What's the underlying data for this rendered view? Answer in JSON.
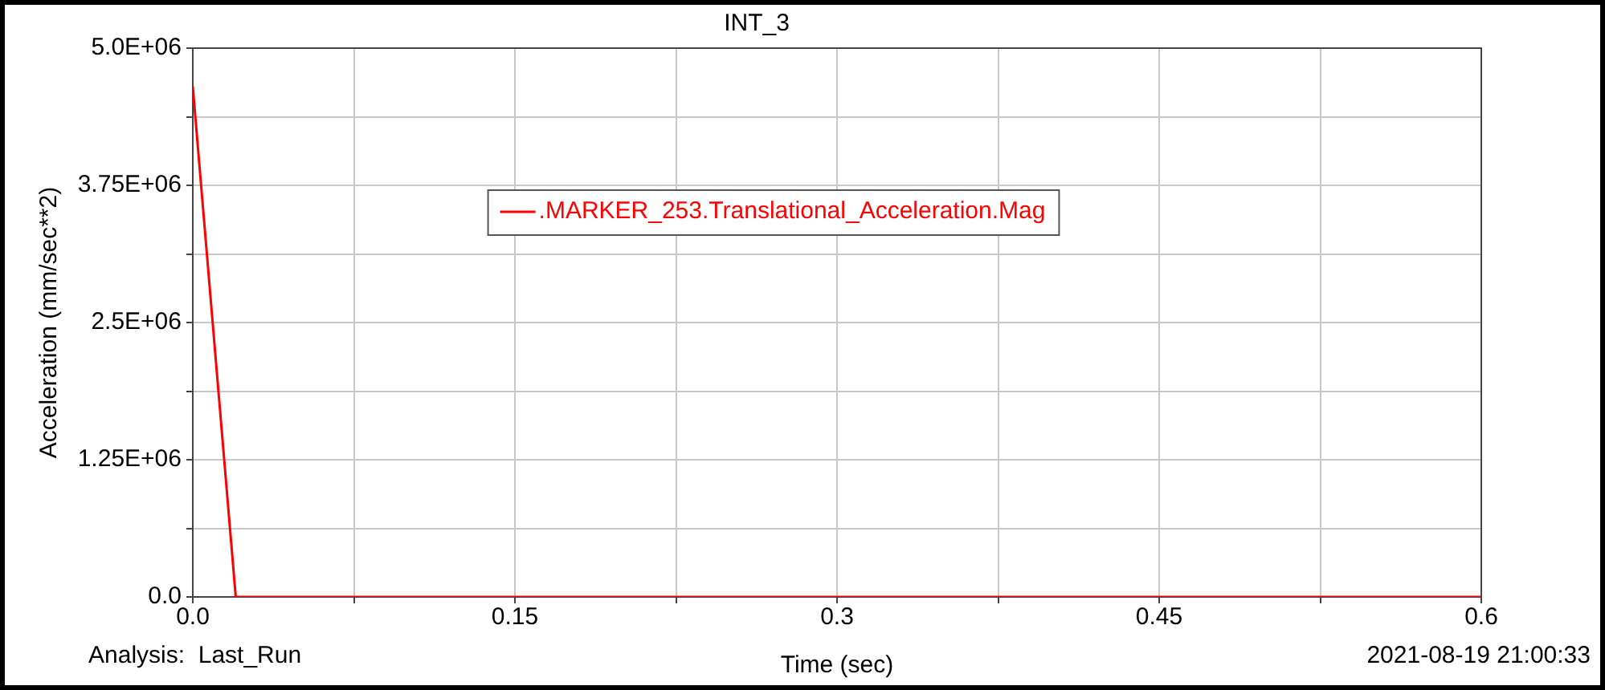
{
  "chart_data": {
    "type": "line",
    "title": "INT_3",
    "xlabel": "Time (sec)",
    "ylabel": "Acceleration (mm/sec**2)",
    "x": [
      0,
      0.02,
      0.6
    ],
    "series": [
      {
        "name": ".MARKER_253.Translational_Acceleration.Mag",
        "color": "#ff0000",
        "values": [
          4650000,
          0,
          0
        ]
      }
    ],
    "xlim": [
      0,
      0.6
    ],
    "xticks": [
      {
        "value": 0,
        "label": "0.0"
      },
      {
        "value": 0.075,
        "label": null
      },
      {
        "value": 0.15,
        "label": "0.15"
      },
      {
        "value": 0.225,
        "label": null
      },
      {
        "value": 0.3,
        "label": "0.3"
      },
      {
        "value": 0.375,
        "label": null
      },
      {
        "value": 0.45,
        "label": "0.45"
      },
      {
        "value": 0.525,
        "label": null
      },
      {
        "value": 0.6,
        "label": "0.6"
      }
    ],
    "ylim": [
      0,
      5000000
    ],
    "yticks": [
      {
        "value": 0,
        "label": "0.0"
      },
      {
        "value": 625000,
        "label": null
      },
      {
        "value": 1250000,
        "label": "1.25E+06"
      },
      {
        "value": 1875000,
        "label": null
      },
      {
        "value": 2500000,
        "label": "2.5E+06"
      },
      {
        "value": 3125000,
        "label": null
      },
      {
        "value": 3750000,
        "label": "3.75E+06"
      },
      {
        "value": 4375000,
        "label": null
      },
      {
        "value": 5000000,
        "label": "5.0E+06"
      }
    ],
    "grid": true,
    "legend": "top",
    "marker": "none",
    "line_style": "solid",
    "annotations": [
      "Analysis:  Last_Run",
      "2021-08-19 21:00:33"
    ]
  }
}
